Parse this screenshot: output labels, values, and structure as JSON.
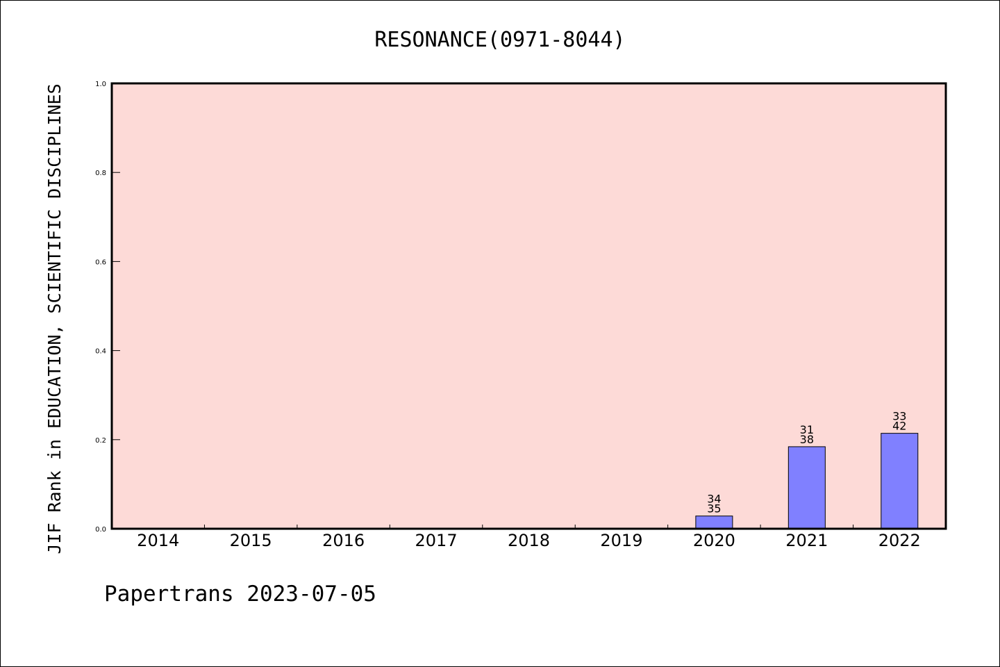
{
  "chart_data": {
    "type": "bar",
    "title": "RESONANCE(0971-8044)",
    "ylabel": "JIF Rank in EDUCATION, SCIENTIFIC DISCIPLINES",
    "xlabel": "",
    "categories": [
      "2014",
      "2015",
      "2016",
      "2017",
      "2018",
      "2019",
      "2020",
      "2021",
      "2022"
    ],
    "values": [
      0,
      0,
      0,
      0,
      0,
      0,
      0.0286,
      0.1842,
      0.2143
    ],
    "bar_labels": [
      null,
      null,
      null,
      null,
      null,
      null,
      {
        "rank": "34",
        "total": "35"
      },
      {
        "rank": "31",
        "total": "38"
      },
      {
        "rank": "33",
        "total": "42"
      }
    ],
    "ylim": [
      0,
      1.0
    ],
    "yticks": [
      "0.0",
      "0.2",
      "0.4",
      "0.6",
      "0.8",
      "1.0"
    ],
    "grid": false,
    "colors": {
      "plot_background": "#FDDAD7",
      "bar_fill": "#8080FF",
      "bar_edge": "#000000"
    }
  },
  "footer": "Papertrans 2023-07-05"
}
